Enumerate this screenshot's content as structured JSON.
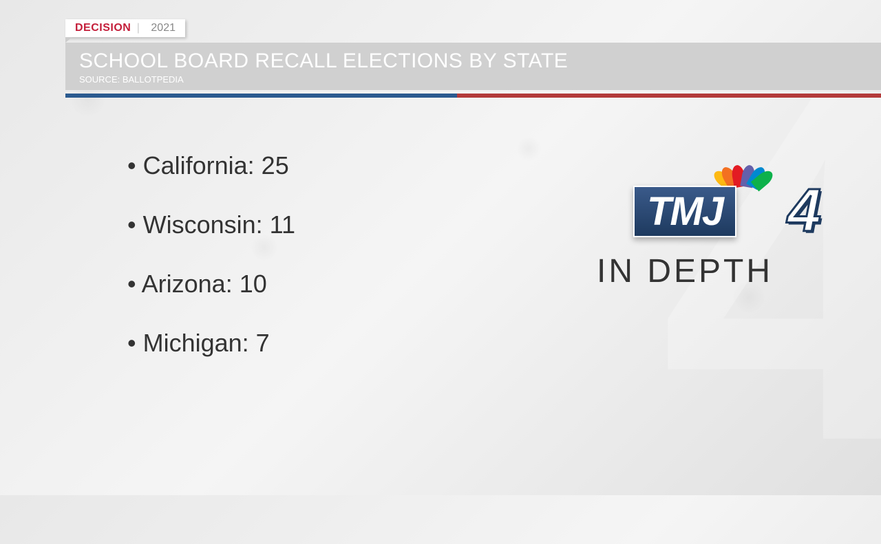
{
  "header": {
    "decision_label": "DECISION",
    "year": "2021"
  },
  "title": {
    "main": "SCHOOL BOARD RECALL ELECTIONS BY STATE",
    "source": "SOURCE: BALLOTPEDIA"
  },
  "colors": {
    "bar_blue": "#2b5a8f",
    "bar_red": "#b33a3a",
    "decision_red": "#c41e3a",
    "title_bg": "#d0d0d0",
    "text_dark": "#333333"
  },
  "data": [
    {
      "state": "California",
      "count": 25
    },
    {
      "state": "Wisconsin",
      "count": 11
    },
    {
      "state": "Arizona",
      "count": 10
    },
    {
      "state": "Michigan",
      "count": 7
    }
  ],
  "logo": {
    "station": "TMJ",
    "channel": "4",
    "tagline": "IN DEPTH"
  },
  "bg_number": "4"
}
